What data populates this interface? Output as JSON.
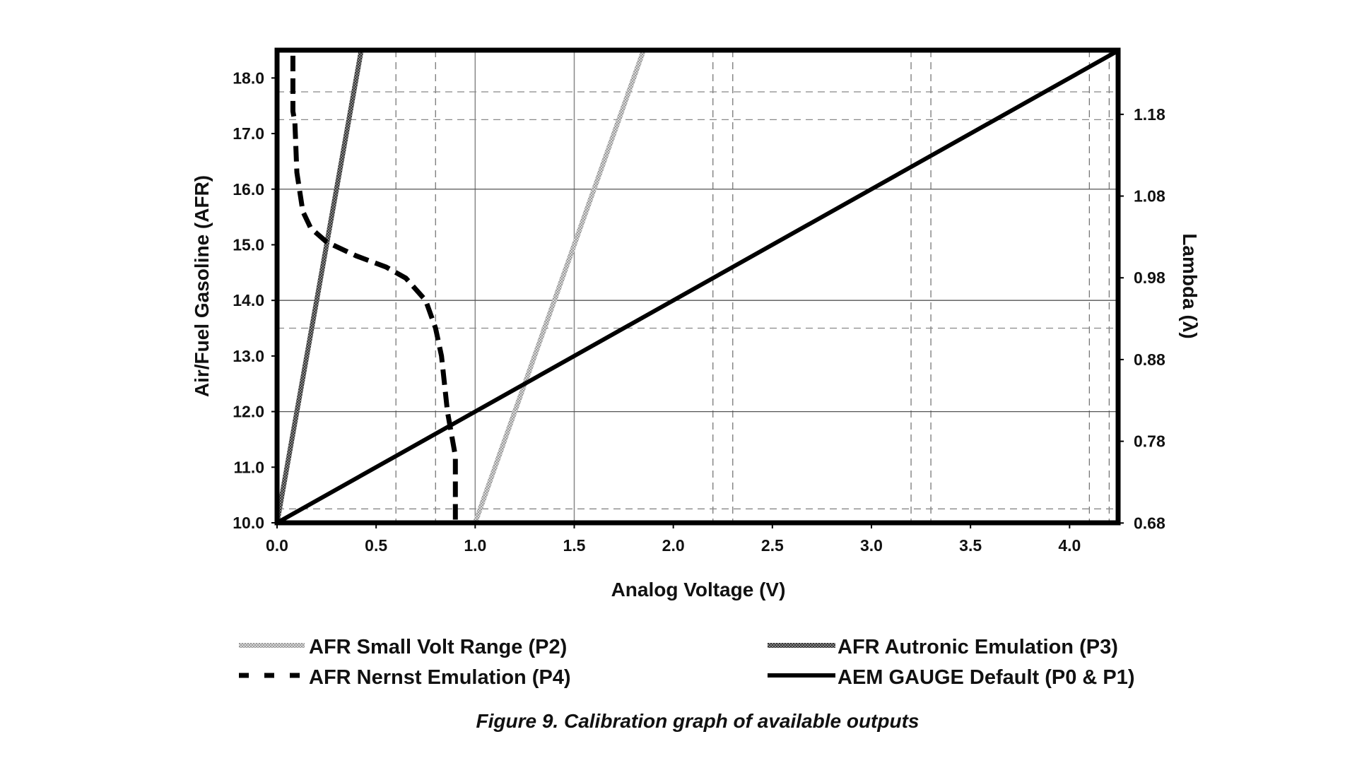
{
  "chart_data": {
    "type": "line",
    "title": "",
    "caption": "Figure 9. Calibration graph of available outputs",
    "xlabel": "Analog Voltage (V)",
    "ylabel": "Air/Fuel Gasoline (AFR)",
    "y2label": "Lambda (λ)",
    "xlim": [
      0,
      4.245
    ],
    "ylim": [
      10.0,
      18.5
    ],
    "y2_relation": "lambda = AFR / 14.7",
    "xticks": [
      "0.0",
      "0.5",
      "1.0",
      "1.5",
      "2.0",
      "2.5",
      "3.0",
      "3.5",
      "4.0"
    ],
    "xtick_values": [
      0,
      0.5,
      1,
      1.5,
      2,
      2.5,
      3,
      3.5,
      4
    ],
    "yticks": [
      "10.0",
      "11.0",
      "12.0",
      "13.0",
      "14.0",
      "15.0",
      "16.0",
      "17.0",
      "18.0"
    ],
    "ytick_values": [
      10,
      11,
      12,
      13,
      14,
      15,
      16,
      17,
      18
    ],
    "y2ticks": [
      "0.68",
      "0.78",
      "0.88",
      "0.98",
      "1.08",
      "1.18"
    ],
    "y2tick_values": [
      0.68,
      0.78,
      0.88,
      0.98,
      1.08,
      1.18
    ],
    "grid": {
      "solid_x": [
        1.0,
        1.5
      ],
      "dashed_x": [
        0.6,
        0.8,
        2.2,
        2.3,
        3.2,
        3.3,
        4.1,
        4.2
      ],
      "solid_y": [
        12,
        14,
        16
      ],
      "dashed_y": [
        10.25,
        13.5,
        17.25,
        17.75
      ]
    },
    "legend_position": "bottom",
    "series": [
      {
        "name": "AFR Small Volt Range (P2)",
        "style": "light-hatched",
        "color": "#b8b8b8",
        "x": [
          1.0,
          1.85
        ],
        "y": [
          10.0,
          18.5
        ]
      },
      {
        "name": "AFR Autronic Emulation (P3)",
        "style": "dark-hatched",
        "color": "#555555",
        "x": [
          0.0,
          0.425
        ],
        "y": [
          10.0,
          18.5
        ]
      },
      {
        "name": "AFR Nernst Emulation (P4)",
        "style": "dashed",
        "color": "#000000",
        "x": [
          0.08,
          0.08,
          0.09,
          0.1,
          0.13,
          0.17,
          0.25,
          0.4,
          0.55,
          0.65,
          0.75,
          0.8,
          0.83,
          0.86,
          0.9,
          0.9
        ],
        "y": [
          18.4,
          17.4,
          17.2,
          16.3,
          15.6,
          15.3,
          15.05,
          14.8,
          14.6,
          14.4,
          14.0,
          13.5,
          13.0,
          12.0,
          11.2,
          10.0
        ]
      },
      {
        "name": "AEM GAUGE Default (P0 & P1)",
        "style": "solid",
        "color": "#000000",
        "x": [
          0.0,
          4.245
        ],
        "y": [
          10.0,
          18.49
        ]
      }
    ]
  }
}
